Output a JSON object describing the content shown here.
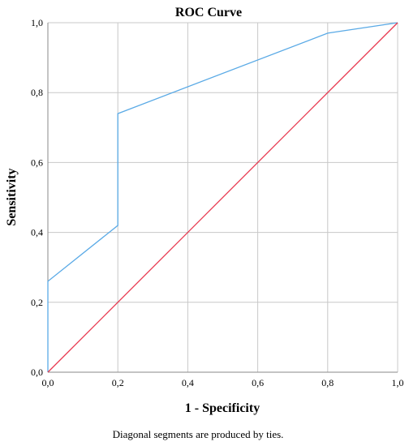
{
  "chart_data": {
    "type": "line",
    "title": "ROC Curve",
    "xlabel": "1 - Specificity",
    "ylabel": "Sensitivity",
    "xlim": [
      0,
      1
    ],
    "ylim": [
      0,
      1
    ],
    "x_ticks": [
      "0,0",
      "0,2",
      "0,4",
      "0,6",
      "0,8",
      "1,0"
    ],
    "y_ticks": [
      "0,0",
      "0,2",
      "0,4",
      "0,6",
      "0,8",
      "1,0"
    ],
    "grid": true,
    "legend": "none",
    "series": [
      {
        "color": "#5aaae6",
        "x": [
          0.0,
          0.0,
          0.2,
          0.2,
          0.8,
          1.0
        ],
        "y": [
          0.0,
          0.26,
          0.42,
          0.74,
          0.97,
          1.0
        ]
      },
      {
        "color": "#e8384f",
        "x": [
          0.0,
          1.0
        ],
        "y": [
          0.0,
          1.0
        ]
      }
    ],
    "footnote": "Diagonal segments are produced by ties."
  }
}
